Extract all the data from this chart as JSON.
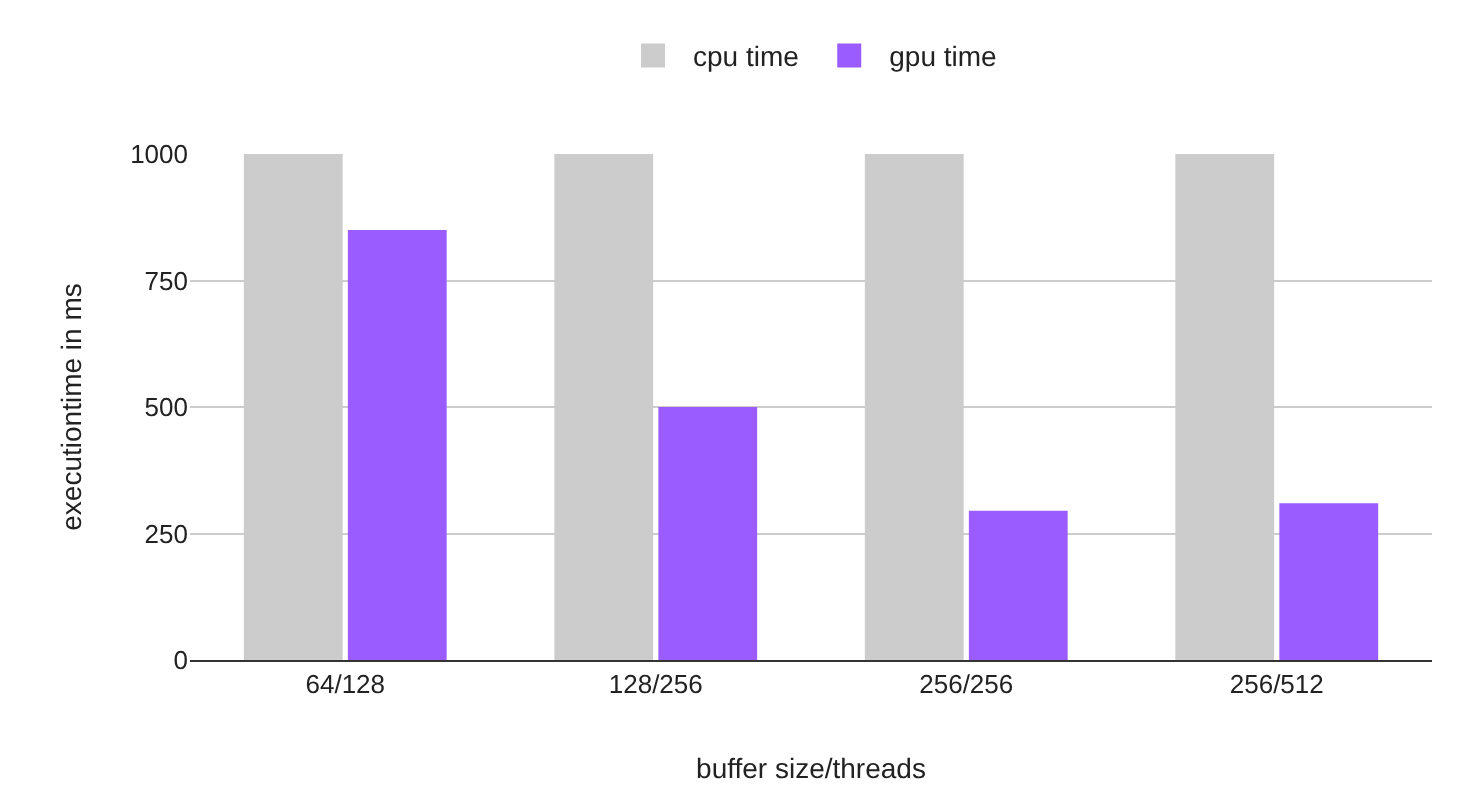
{
  "chart_data": {
    "type": "bar",
    "xlabel": "buffer size/threads",
    "ylabel": "executiontime in ms",
    "categories": [
      "64/128",
      "128/256",
      "256/256",
      "256/512"
    ],
    "series": [
      {
        "name": "cpu time",
        "color": "#cccccc",
        "values": [
          1000,
          1000,
          1000,
          1000
        ]
      },
      {
        "name": "gpu time",
        "color": "#9a5cff",
        "values": [
          850,
          500,
          295,
          310
        ]
      }
    ],
    "ylim": [
      0,
      1000
    ],
    "yticks": [
      0,
      250,
      500,
      750,
      1000
    ],
    "grid": "y",
    "legend": "top"
  }
}
